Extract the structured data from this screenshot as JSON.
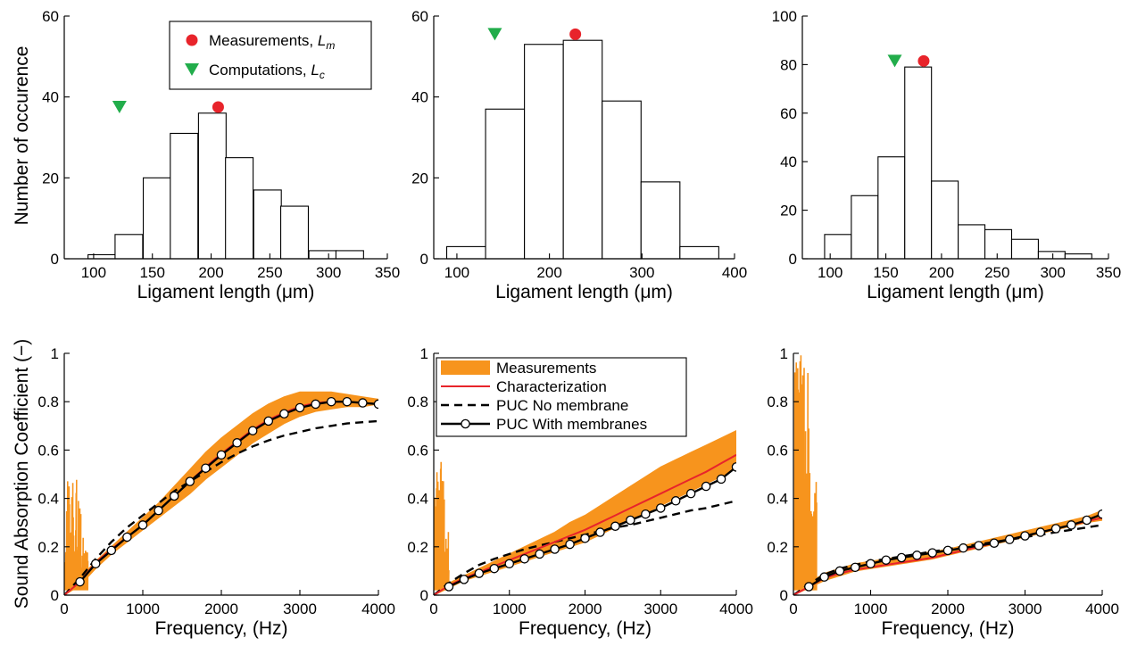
{
  "colors": {
    "histogram_fill": "#ffffff",
    "measurement_marker": "#e8242b",
    "computation_marker": "#22ad4b",
    "measurement_band": "#f7941d",
    "characterization_line": "#e8242b",
    "model_line": "#000000"
  },
  "chart_data": [
    {
      "type": "bar",
      "panel": "top-left",
      "xlabel": "Ligament length (μm)",
      "ylabel": "Number of occurence",
      "xlim": [
        75,
        350
      ],
      "ylim": [
        0,
        60
      ],
      "xticks": [
        100,
        150,
        200,
        250,
        300,
        350
      ],
      "yticks": [
        0,
        20,
        40,
        60
      ],
      "bin_width": 23.5,
      "bin_centers": [
        107,
        130,
        154,
        177,
        201,
        224,
        248,
        271,
        295,
        318
      ],
      "values": [
        1,
        6,
        20,
        31,
        36,
        25,
        17,
        13,
        2,
        2
      ],
      "markers": [
        {
          "series": "Measurements, L_m",
          "x": 206,
          "y": 37.5,
          "shape": "circle"
        },
        {
          "series": "Computations, L_c",
          "x": 122,
          "y": 37.5,
          "shape": "triangle-down"
        }
      ],
      "legend": {
        "placement": "top-right",
        "entries": [
          {
            "label": "Measurements, ",
            "sub": "m",
            "shape": "circle"
          },
          {
            "label": "Computations, ",
            "sub": "c",
            "shape": "triangle-down"
          }
        ]
      }
    },
    {
      "type": "bar",
      "panel": "top-middle",
      "xlabel": "Ligament length (μm)",
      "xlim": [
        75,
        400
      ],
      "ylim": [
        0,
        60
      ],
      "xticks": [
        100,
        200,
        300,
        400
      ],
      "yticks": [
        0,
        20,
        40,
        60
      ],
      "bin_width": 42,
      "bin_centers": [
        110,
        152,
        194,
        236,
        278,
        320,
        362
      ],
      "values": [
        3,
        37,
        53,
        54,
        39,
        19,
        3
      ],
      "markers": [
        {
          "series": "Measurements",
          "x": 228,
          "y": 55.5,
          "shape": "circle"
        },
        {
          "series": "Computations",
          "x": 141,
          "y": 55.5,
          "shape": "triangle-down"
        }
      ]
    },
    {
      "type": "bar",
      "panel": "top-right",
      "xlabel": "Ligament length (μm)",
      "xlim": [
        75,
        350
      ],
      "ylim": [
        0,
        100
      ],
      "xticks": [
        100,
        150,
        200,
        250,
        300,
        350
      ],
      "yticks": [
        0,
        20,
        40,
        60,
        80,
        100
      ],
      "bin_width": 24,
      "bin_centers": [
        107,
        131,
        155,
        179,
        203,
        227,
        251,
        275,
        299,
        323
      ],
      "values": [
        10,
        26,
        42,
        79,
        32,
        14,
        12,
        8,
        3,
        2
      ],
      "markers": [
        {
          "series": "Measurements",
          "x": 184,
          "y": 81.5,
          "shape": "circle"
        },
        {
          "series": "Computations",
          "x": 158,
          "y": 81.5,
          "shape": "triangle-down"
        }
      ]
    },
    {
      "type": "line",
      "panel": "bottom-left",
      "xlabel": "Frequency, (Hz)",
      "ylabel": "Sound Absorption Coefficient (−)",
      "xlim": [
        0,
        4000
      ],
      "ylim": [
        0,
        1
      ],
      "xticks": [
        0,
        1000,
        2000,
        3000,
        4000
      ],
      "yticks": [
        0,
        0.2,
        0.4,
        0.6,
        0.8,
        1
      ],
      "band": {
        "x": [
          0,
          200,
          400,
          600,
          800,
          1000,
          1200,
          1400,
          1600,
          1800,
          2000,
          2200,
          2400,
          2600,
          2800,
          3000,
          3200,
          3400,
          3600,
          3800,
          4000
        ],
        "lower": [
          0,
          0.04,
          0.11,
          0.17,
          0.22,
          0.27,
          0.32,
          0.37,
          0.42,
          0.48,
          0.53,
          0.58,
          0.63,
          0.67,
          0.71,
          0.74,
          0.76,
          0.77,
          0.78,
          0.78,
          0.79
        ],
        "upper": [
          0,
          0.07,
          0.14,
          0.2,
          0.26,
          0.32,
          0.38,
          0.45,
          0.52,
          0.59,
          0.65,
          0.7,
          0.75,
          0.79,
          0.82,
          0.84,
          0.84,
          0.84,
          0.83,
          0.82,
          0.81
        ]
      },
      "band_noise": {
        "x_max": 300,
        "y_max": 0.48
      },
      "series": [
        {
          "name": "Characterization",
          "x": [
            0,
            200,
            400,
            600,
            800,
            1000,
            1200,
            1400,
            1600,
            1800,
            2000,
            2200,
            2400,
            2600,
            2800,
            3000,
            3200,
            3400,
            3600,
            3800,
            4000
          ],
          "y": [
            0,
            0.055,
            0.135,
            0.19,
            0.24,
            0.29,
            0.35,
            0.41,
            0.47,
            0.53,
            0.585,
            0.635,
            0.685,
            0.725,
            0.755,
            0.78,
            0.795,
            0.8,
            0.8,
            0.795,
            0.79
          ]
        },
        {
          "name": "PUC No membrane",
          "x": [
            0,
            200,
            400,
            600,
            800,
            1000,
            1200,
            1400,
            1600,
            1800,
            2000,
            2200,
            2400,
            2600,
            2800,
            3000,
            3200,
            3400,
            3600,
            3800,
            4000
          ],
          "y": [
            0,
            0.07,
            0.15,
            0.22,
            0.28,
            0.33,
            0.38,
            0.43,
            0.47,
            0.51,
            0.55,
            0.585,
            0.615,
            0.64,
            0.66,
            0.675,
            0.69,
            0.7,
            0.71,
            0.715,
            0.72
          ]
        },
        {
          "name": "PUC With membranes",
          "x": [
            200,
            400,
            600,
            800,
            1000,
            1200,
            1400,
            1600,
            1800,
            2000,
            2200,
            2400,
            2600,
            2800,
            3000,
            3200,
            3400,
            3600,
            3800,
            4000
          ],
          "y": [
            0.055,
            0.13,
            0.185,
            0.24,
            0.29,
            0.35,
            0.41,
            0.47,
            0.525,
            0.58,
            0.63,
            0.68,
            0.72,
            0.75,
            0.775,
            0.79,
            0.8,
            0.8,
            0.795,
            0.79
          ]
        }
      ]
    },
    {
      "type": "line",
      "panel": "bottom-middle",
      "xlabel": "Frequency, (Hz)",
      "xlim": [
        0,
        4000
      ],
      "ylim": [
        0,
        1
      ],
      "xticks": [
        0,
        1000,
        2000,
        3000,
        4000
      ],
      "yticks": [
        0,
        0.2,
        0.4,
        0.6,
        0.8,
        1
      ],
      "band": {
        "x": [
          0,
          200,
          400,
          600,
          800,
          1000,
          1200,
          1400,
          1600,
          1800,
          2000,
          2200,
          2400,
          2600,
          2800,
          3000,
          3200,
          3400,
          3600,
          3800,
          4000
        ],
        "lower": [
          0,
          0.03,
          0.06,
          0.08,
          0.1,
          0.12,
          0.14,
          0.16,
          0.18,
          0.2,
          0.22,
          0.25,
          0.28,
          0.31,
          0.34,
          0.37,
          0.4,
          0.43,
          0.46,
          0.49,
          0.53
        ],
        "upper": [
          0,
          0.05,
          0.08,
          0.11,
          0.14,
          0.17,
          0.2,
          0.23,
          0.26,
          0.3,
          0.33,
          0.37,
          0.41,
          0.45,
          0.49,
          0.53,
          0.56,
          0.59,
          0.62,
          0.65,
          0.68
        ]
      },
      "band_noise": {
        "x_max": 200,
        "y_max": 0.6
      },
      "legend": {
        "placement": "top-left",
        "entries": [
          "Measurements",
          "Characterization",
          "PUC No membrane",
          "PUC With membranes"
        ]
      },
      "series": [
        {
          "name": "Characterization",
          "x": [
            0,
            200,
            400,
            600,
            800,
            1000,
            1200,
            1400,
            1600,
            1800,
            2000,
            2200,
            2400,
            2600,
            2800,
            3000,
            3200,
            3400,
            3600,
            3800,
            4000
          ],
          "y": [
            0,
            0.04,
            0.07,
            0.095,
            0.12,
            0.145,
            0.17,
            0.195,
            0.22,
            0.245,
            0.27,
            0.3,
            0.33,
            0.36,
            0.39,
            0.42,
            0.45,
            0.48,
            0.51,
            0.545,
            0.58
          ]
        },
        {
          "name": "PUC No membrane",
          "x": [
            0,
            200,
            400,
            600,
            800,
            1000,
            1200,
            1400,
            1600,
            1800,
            2000,
            2200,
            2400,
            2600,
            2800,
            3000,
            3200,
            3400,
            3600,
            3800,
            4000
          ],
          "y": [
            0,
            0.05,
            0.09,
            0.125,
            0.15,
            0.17,
            0.19,
            0.205,
            0.22,
            0.235,
            0.25,
            0.265,
            0.28,
            0.29,
            0.305,
            0.32,
            0.335,
            0.35,
            0.36,
            0.375,
            0.39
          ]
        },
        {
          "name": "PUC With membranes",
          "x": [
            200,
            400,
            600,
            800,
            1000,
            1200,
            1400,
            1600,
            1800,
            2000,
            2200,
            2400,
            2600,
            2800,
            3000,
            3200,
            3400,
            3600,
            3800,
            4000
          ],
          "y": [
            0.035,
            0.065,
            0.09,
            0.11,
            0.13,
            0.15,
            0.17,
            0.19,
            0.21,
            0.235,
            0.26,
            0.285,
            0.31,
            0.335,
            0.36,
            0.39,
            0.42,
            0.45,
            0.48,
            0.53
          ]
        }
      ]
    },
    {
      "type": "line",
      "panel": "bottom-right",
      "xlabel": "Frequency, (Hz)",
      "xlim": [
        0,
        4000
      ],
      "ylim": [
        0,
        1
      ],
      "xticks": [
        0,
        1000,
        2000,
        3000,
        4000
      ],
      "yticks": [
        0,
        0.2,
        0.4,
        0.6,
        0.8,
        1
      ],
      "band": {
        "x": [
          0,
          200,
          400,
          600,
          800,
          1000,
          1200,
          1400,
          1600,
          1800,
          2000,
          2200,
          2400,
          2600,
          2800,
          3000,
          3200,
          3400,
          3600,
          3800,
          4000
        ],
        "lower": [
          0,
          0.03,
          0.06,
          0.08,
          0.1,
          0.11,
          0.12,
          0.13,
          0.14,
          0.15,
          0.165,
          0.18,
          0.195,
          0.21,
          0.225,
          0.24,
          0.255,
          0.27,
          0.285,
          0.3,
          0.31
        ],
        "upper": [
          0,
          0.05,
          0.09,
          0.11,
          0.13,
          0.14,
          0.15,
          0.16,
          0.17,
          0.18,
          0.19,
          0.205,
          0.22,
          0.235,
          0.25,
          0.265,
          0.28,
          0.295,
          0.31,
          0.325,
          0.35
        ]
      },
      "band_noise": {
        "x_max": 300,
        "y_max": 1
      },
      "series": [
        {
          "name": "Characterization",
          "x": [
            0,
            200,
            400,
            600,
            800,
            1000,
            1200,
            1400,
            1600,
            1800,
            2000,
            2200,
            2400,
            2600,
            2800,
            3000,
            3200,
            3400,
            3600,
            3800,
            4000
          ],
          "y": [
            0,
            0.035,
            0.07,
            0.09,
            0.105,
            0.115,
            0.125,
            0.135,
            0.145,
            0.155,
            0.17,
            0.185,
            0.2,
            0.215,
            0.23,
            0.245,
            0.26,
            0.275,
            0.29,
            0.305,
            0.32
          ]
        },
        {
          "name": "PUC No membrane",
          "x": [
            0,
            200,
            400,
            600,
            800,
            1000,
            1200,
            1400,
            1600,
            1800,
            2000,
            2200,
            2400,
            2600,
            2800,
            3000,
            3200,
            3400,
            3600,
            3800,
            4000
          ],
          "y": [
            0,
            0.045,
            0.085,
            0.11,
            0.125,
            0.14,
            0.15,
            0.16,
            0.17,
            0.18,
            0.19,
            0.2,
            0.21,
            0.22,
            0.23,
            0.24,
            0.25,
            0.26,
            0.27,
            0.28,
            0.29
          ]
        },
        {
          "name": "PUC With membranes",
          "x": [
            200,
            400,
            600,
            800,
            1000,
            1200,
            1400,
            1600,
            1800,
            2000,
            2200,
            2400,
            2600,
            2800,
            3000,
            3200,
            3400,
            3600,
            3800,
            4000
          ],
          "y": [
            0.035,
            0.075,
            0.1,
            0.115,
            0.13,
            0.145,
            0.155,
            0.165,
            0.175,
            0.185,
            0.195,
            0.205,
            0.215,
            0.23,
            0.245,
            0.26,
            0.275,
            0.29,
            0.31,
            0.335
          ]
        }
      ]
    }
  ]
}
